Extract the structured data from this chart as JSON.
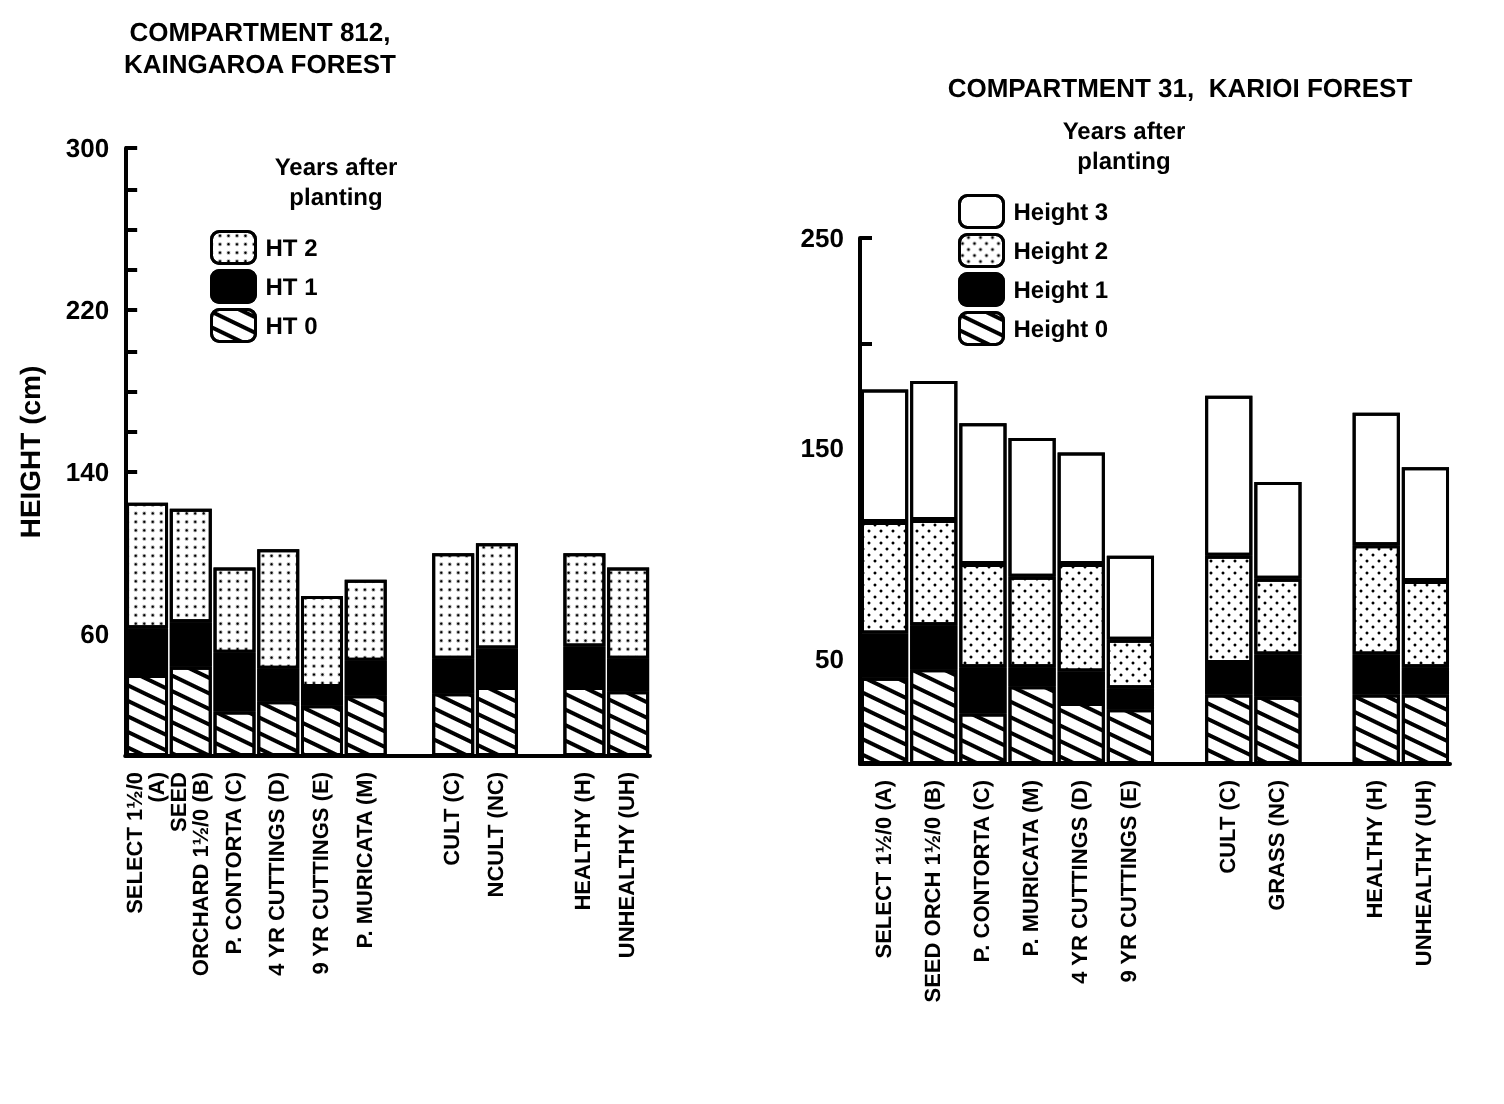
{
  "chart_data": [
    {
      "type": "bar",
      "title": "COMPARTMENT 812,\nKAINGAROA FOREST",
      "ylabel": "HEIGHT (cm)",
      "legend_title": "Years after\nplanting",
      "categories": [
        "SELECT 1½/0\n(A)",
        "SEED\nORCHARD 1½/0 (B)",
        "P. CONTORTA (C)",
        "4 YR CUTTINGS (D)",
        "9 YR CUTTINGS (E)",
        "P. MURICATA (M)",
        null,
        "CULT (C)",
        "NCULT (NC)",
        null,
        "HEALTHY (H)",
        "UNHEALTHY (UH)"
      ],
      "series": [
        {
          "name": "HT 0",
          "color": "#ffffff",
          "values": [
            40,
            44,
            22,
            27,
            25,
            30,
            null,
            31,
            34,
            null,
            34,
            32
          ]
        },
        {
          "name": "HT 1",
          "color": "#000000",
          "values": [
            23,
            22,
            29,
            16,
            9,
            17,
            null,
            17,
            19,
            null,
            20,
            16
          ]
        },
        {
          "name": "HT 2",
          "color": "#ffffff",
          "values": [
            62,
            56,
            42,
            59,
            45,
            40,
            null,
            52,
            52,
            null,
            46,
            45
          ]
        }
      ],
      "stacked": true,
      "ylim": [
        0,
        300
      ],
      "yticks": [
        {
          "value": 20,
          "label": null
        },
        {
          "value": 40,
          "label": null
        },
        60,
        {
          "value": 80,
          "label": null
        },
        {
          "value": 100,
          "label": null
        },
        {
          "value": 120,
          "label": null
        },
        140,
        {
          "value": 160,
          "label": null
        },
        {
          "value": 180,
          "label": null
        },
        {
          "value": 200,
          "label": null
        },
        220,
        {
          "value": 240,
          "label": null
        },
        {
          "value": 260,
          "label": null
        },
        {
          "value": 280,
          "label": null
        },
        300
      ],
      "grid": false,
      "legend": "top left"
    },
    {
      "type": "bar",
      "title": "COMPARTMENT 31,  KARIOI FOREST",
      "legend_title": "Years after\nplanting",
      "categories": [
        "SELECT 1½/0 (A)",
        "SEED ORCH 1½/0 (B)",
        "P. CONTORTA (C)",
        "P. MURICATA (M)",
        "4 YR CUTTINGS (D)",
        "9 YR CUTTINGS (E)",
        null,
        "CULT (C)",
        "GRASS (NC)",
        null,
        "HEALTHY (H)",
        "UNHEALTHY (UH)"
      ],
      "series": [
        {
          "name": "Height 0",
          "color": "#ffffff",
          "values": [
            41,
            45,
            24,
            37,
            29,
            26,
            null,
            33,
            32,
            null,
            33,
            33
          ]
        },
        {
          "name": "Height 1",
          "color": "#000000",
          "values": [
            21,
            21,
            22,
            9,
            15,
            10,
            null,
            15,
            20,
            null,
            19,
            13
          ]
        },
        {
          "name": "Height 2",
          "color": "#ffffff",
          "values": [
            53,
            50,
            49,
            43,
            51,
            23,
            null,
            51,
            36,
            null,
            52,
            41
          ]
        },
        {
          "name": "Height 3",
          "color": "#ffffff",
          "values": [
            63,
            66,
            67,
            66,
            53,
            40,
            null,
            76,
            46,
            null,
            63,
            54
          ]
        }
      ],
      "stacked": true,
      "ylim": [
        0,
        250
      ],
      "yticks": [
        50,
        {
          "value": 100,
          "label": null
        },
        150,
        {
          "value": 200,
          "label": null
        },
        250
      ],
      "grid": false,
      "legend": "top left"
    }
  ]
}
